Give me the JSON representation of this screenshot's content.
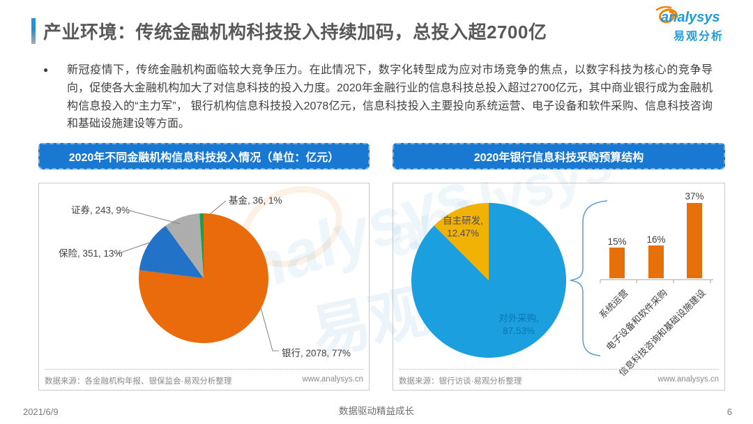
{
  "header": {
    "title": "产业环境：传统金融机构科技投入持续加码，总投入超2700亿",
    "logo": {
      "brand": "analysys",
      "brand_cn": "易观分析"
    }
  },
  "summary": {
    "bullet": "●",
    "text": "新冠疫情下，传统金融机构面临较大竞争压力。在此情况下，数字化转型成为应对市场竞争的焦点，以数字科技为核心的竞争导向，促使各大金融机构加大了对信息科技的投入力度。2020年金融行业的信息科技总投入超过2700亿元，其中商业银行成为金融机构信息投入的“主力军”， 银行机构信息科技投入2078亿元，信息科技投入主要投向系统运营、电子设备和软件采购、信息科技咨询和基础设施建设等方面。"
  },
  "left_panel": {
    "header": "2020年不同金融机构信息科技投入情况（单位：亿元）",
    "source": "数据来源：各金融机构年报、银保监会·易观分析整理",
    "website": "www.analysys.cn"
  },
  "right_panel": {
    "header": "2020年银行信息科技采购预算结构",
    "source": "数据来源：银行访谈·易观分析整理",
    "website": "www.analysys.cn"
  },
  "chart_data": [
    {
      "type": "pie",
      "title": "2020年不同金融机构信息科技投入情况",
      "unit": "亿元",
      "start_angle_deg": 0,
      "direction": "clockwise",
      "slices": [
        {
          "name": "银行",
          "value": 2078,
          "pct": 77,
          "label": "银行, 2078, 77%",
          "color": "#e96b0c"
        },
        {
          "name": "保险",
          "value": 351,
          "pct": 13,
          "label": "保险, 351, 13%",
          "color": "#2272c8"
        },
        {
          "name": "证券",
          "value": 243,
          "pct": 9,
          "label": "证券, 243, 9%",
          "color": "#adadad"
        },
        {
          "name": "基金",
          "value": 36,
          "pct": 1,
          "label": "基金, 36, 1%",
          "color": "#13a24a"
        }
      ]
    },
    {
      "type": "pie",
      "title": "2020年银行信息科技采购预算结构",
      "start_angle_deg": 0,
      "direction": "clockwise",
      "slices": [
        {
          "name": "对外采购",
          "pct": 87.53,
          "label_line1": "对外采购,",
          "label_line2": "87.53%",
          "color": "#1b9fde"
        },
        {
          "name": "自主研发",
          "pct": 12.47,
          "label_line1": "自主研发,",
          "label_line2": "12.47%",
          "color": "#f2b203"
        }
      ]
    },
    {
      "type": "bar",
      "categories": [
        "系统运营",
        "电子设备和软件采购",
        "信息科技咨询和基础设施建设"
      ],
      "values": [
        15,
        16,
        37
      ],
      "labels": [
        "15%",
        "16%",
        "37%"
      ],
      "bar_color": "#e8700a",
      "ylim": [
        0,
        40
      ],
      "grid": false
    }
  ],
  "watermark": {
    "text_en": "analysys",
    "text_cn": "易观"
  },
  "footer": {
    "date": "2021/6/9",
    "slogan": "数据驱动精益成长",
    "page": "6"
  }
}
